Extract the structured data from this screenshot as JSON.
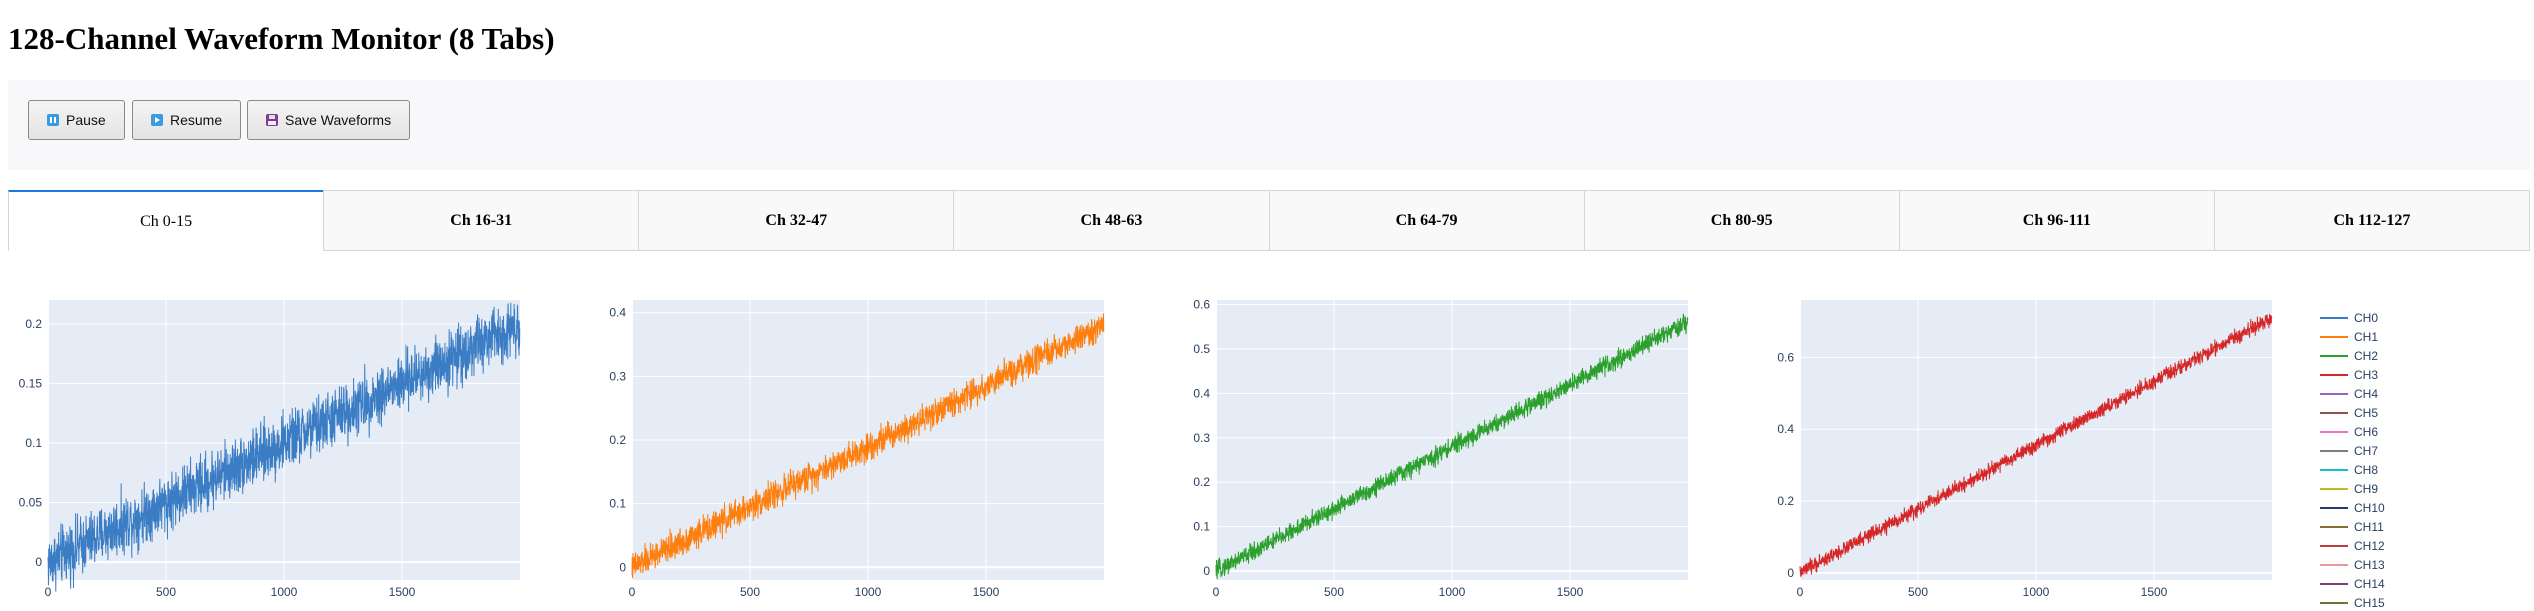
{
  "page": {
    "title": "128-Channel Waveform Monitor (8 Tabs)"
  },
  "controls": {
    "pause_label": "Pause",
    "resume_label": "Resume",
    "save_label": "Save Waveforms",
    "pause_icon": "pause-icon",
    "resume_icon": "play-icon",
    "save_icon": "floppy-disk-icon"
  },
  "tabs": [
    {
      "label": "Ch 0-15",
      "active": true
    },
    {
      "label": "Ch 16-31",
      "active": false
    },
    {
      "label": "Ch 32-47",
      "active": false
    },
    {
      "label": "Ch 48-63",
      "active": false
    },
    {
      "label": "Ch 64-79",
      "active": false
    },
    {
      "label": "Ch 80-95",
      "active": false
    },
    {
      "label": "Ch 96-111",
      "active": false
    },
    {
      "label": "Ch 112-127",
      "active": false
    }
  ],
  "legend": [
    {
      "name": "CH0",
      "color": "#3b7dc4"
    },
    {
      "name": "CH1",
      "color": "#ff7f0e"
    },
    {
      "name": "CH2",
      "color": "#2ca02c"
    },
    {
      "name": "CH3",
      "color": "#d62728"
    },
    {
      "name": "CH4",
      "color": "#9467bd"
    },
    {
      "name": "CH5",
      "color": "#8c564b"
    },
    {
      "name": "CH6",
      "color": "#e377c2"
    },
    {
      "name": "CH7",
      "color": "#7f7f7f"
    },
    {
      "name": "CH8",
      "color": "#17becf"
    },
    {
      "name": "CH9",
      "color": "#bcbd22"
    },
    {
      "name": "CH10",
      "color": "#1f3b6f"
    },
    {
      "name": "CH11",
      "color": "#8c6d31"
    },
    {
      "name": "CH12",
      "color": "#c03d3d"
    },
    {
      "name": "CH13",
      "color": "#e7969c"
    },
    {
      "name": "CH14",
      "color": "#7b4173"
    },
    {
      "name": "CH15",
      "color": "#637939"
    }
  ],
  "chart_data": [
    {
      "type": "line",
      "series": [
        {
          "name": "CH0",
          "color": "#3b7dc4",
          "start": 0.0,
          "end": 0.2,
          "noise": 0.024
        }
      ],
      "xlim": [
        0,
        2000
      ],
      "ylim": [
        -0.015,
        0.22
      ],
      "xticks": [
        "0",
        "500",
        "1000",
        "1500"
      ],
      "xtick_values": [
        0,
        500,
        1000,
        1500
      ],
      "yticks": [
        "0",
        "0.05",
        "0.1",
        "0.15",
        "0.2"
      ],
      "ytick_values": [
        0,
        0.05,
        0.1,
        0.15,
        0.2
      ]
    },
    {
      "type": "line",
      "series": [
        {
          "name": "CH1",
          "color": "#ff7f0e",
          "start": 0.0,
          "end": 0.38,
          "noise": 0.022
        }
      ],
      "xlim": [
        0,
        2000
      ],
      "ylim": [
        -0.02,
        0.42
      ],
      "xticks": [
        "0",
        "500",
        "1000",
        "1500"
      ],
      "xtick_values": [
        0,
        500,
        1000,
        1500
      ],
      "yticks": [
        "0",
        "0.1",
        "0.2",
        "0.3",
        "0.4"
      ],
      "ytick_values": [
        0,
        0.1,
        0.2,
        0.3,
        0.4
      ]
    },
    {
      "type": "line",
      "series": [
        {
          "name": "CH2",
          "color": "#2ca02c",
          "start": 0.0,
          "end": 0.56,
          "noise": 0.02
        }
      ],
      "xlim": [
        0,
        2000
      ],
      "ylim": [
        -0.02,
        0.61
      ],
      "xticks": [
        "0",
        "500",
        "1000",
        "1500"
      ],
      "xtick_values": [
        0,
        500,
        1000,
        1500
      ],
      "yticks": [
        "0",
        "0.1",
        "0.2",
        "0.3",
        "0.4",
        "0.5",
        "0.6"
      ],
      "ytick_values": [
        0,
        0.1,
        0.2,
        0.3,
        0.4,
        0.5,
        0.6
      ]
    },
    {
      "type": "line",
      "series": [
        {
          "name": "CH3",
          "color": "#d62728",
          "start": 0.0,
          "end": 0.71,
          "noise": 0.02
        }
      ],
      "xlim": [
        0,
        2000
      ],
      "ylim": [
        -0.02,
        0.76
      ],
      "xticks": [
        "0",
        "500",
        "1000",
        "1500"
      ],
      "xtick_values": [
        0,
        500,
        1000,
        1500
      ],
      "yticks": [
        "0",
        "0.2",
        "0.4",
        "0.6"
      ],
      "ytick_values": [
        0,
        0.2,
        0.4,
        0.6
      ]
    }
  ]
}
